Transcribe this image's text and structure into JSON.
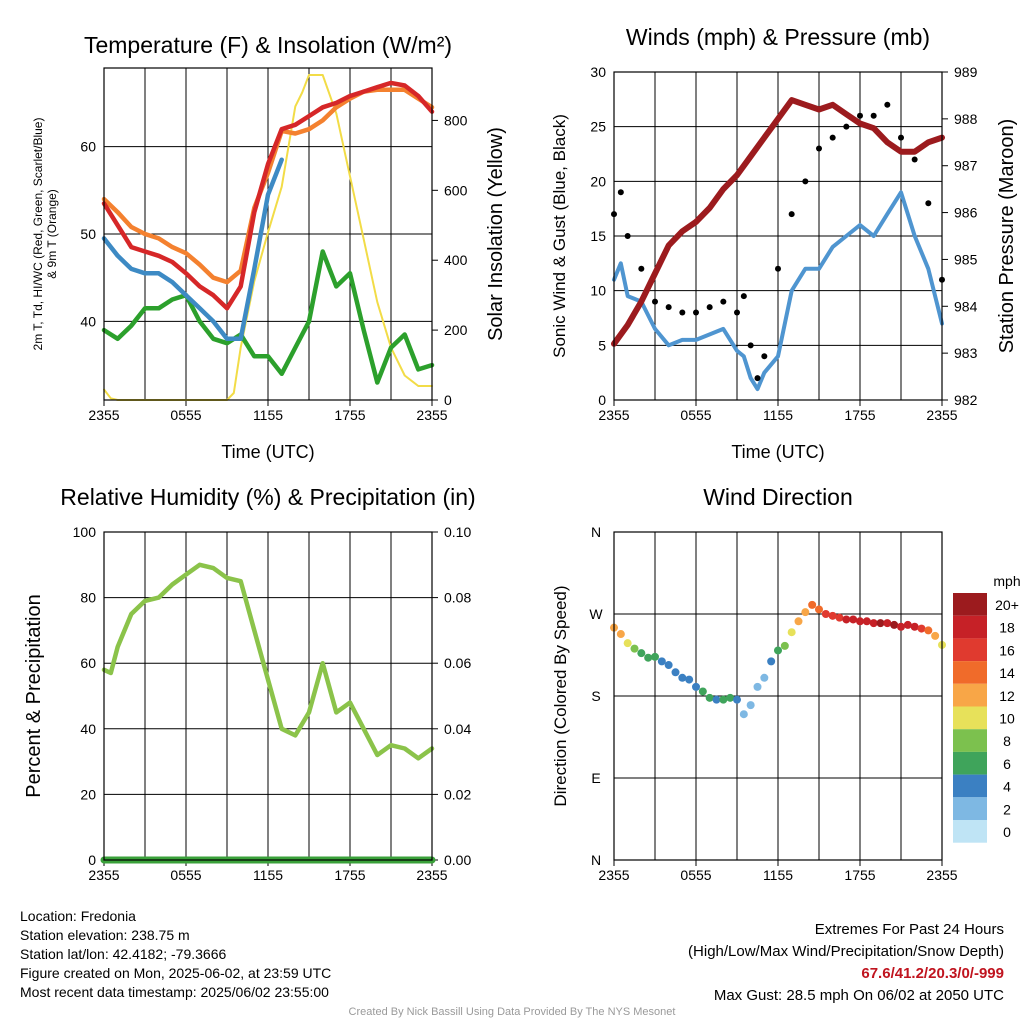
{
  "colors": {
    "temp_2m": "#d62728",
    "dewpoint": "#3d8ac4",
    "hi_wc": "#2ca02c",
    "temp_9m": "#f4812f",
    "insolation": "#f2dc47",
    "wind": "#4f95d0",
    "gust": "#000000",
    "pressure": "#9c1b1e",
    "humidity": "#8bc34a",
    "precip": "#3aa13a",
    "extremes_text": "#c0141f"
  },
  "chart_data": [
    {
      "type": "line",
      "title": "Temperature (F) & Insolation (W/m²)",
      "xlabel": "Time (UTC)",
      "ylabel": "2m T, Td, HI/WC (Red, Green, Scarlet/Blue) & 9m T (Orange)",
      "ylabel_line1": "2m T, Td, HI/WC (Red, Green, Scarlet/Blue)",
      "ylabel_line2": "& 9m T (Orange)",
      "ylabel_right": "Solar Insolation (Yellow)",
      "x_ticks": [
        "2355",
        "0555",
        "1155",
        "1755",
        "2355"
      ],
      "ylim": [
        31,
        69
      ],
      "y_ticks": [
        40,
        50,
        60
      ],
      "ylim_right": [
        0,
        950
      ],
      "y_ticks_right": [
        0,
        200,
        400,
        600,
        800
      ],
      "grid": true,
      "series": [
        {
          "key": "temp_9m",
          "axis": "left",
          "x": [
            0,
            1,
            2,
            3,
            4,
            5,
            6,
            7,
            8,
            9,
            10,
            11,
            12,
            13,
            14,
            15,
            16,
            17,
            18,
            19,
            20,
            21,
            22,
            23,
            24
          ],
          "values": [
            54,
            52.5,
            50.8,
            50,
            49.5,
            48.5,
            47.8,
            46.5,
            45,
            44.5,
            45.8,
            53,
            57,
            61.8,
            61.5,
            62,
            63,
            64.5,
            65.5,
            66.3,
            66.5,
            66.5,
            66.5,
            65.5,
            64.5
          ]
        },
        {
          "key": "temp_2m",
          "axis": "left",
          "x": [
            0,
            1,
            2,
            3,
            4,
            5,
            6,
            7,
            8,
            9,
            10,
            11,
            12,
            13,
            14,
            15,
            16,
            17,
            18,
            19,
            20,
            21,
            22,
            23,
            24
          ],
          "values": [
            53.5,
            51,
            48.5,
            48,
            47.5,
            46.8,
            45.5,
            44,
            43,
            41.5,
            44,
            52.5,
            58,
            62,
            62.5,
            63.5,
            64.5,
            65,
            65.8,
            66.3,
            66.8,
            67.3,
            67,
            65.8,
            64
          ]
        },
        {
          "key": "dewpoint",
          "axis": "left",
          "x": [
            0,
            1,
            2,
            3,
            4,
            5,
            6,
            7,
            8,
            9,
            10,
            11,
            12,
            13
          ],
          "values": [
            49.5,
            47.5,
            46,
            45.5,
            45.5,
            44.5,
            43,
            41.5,
            40,
            38,
            38,
            46,
            54.5,
            58.5
          ]
        },
        {
          "key": "hi_wc",
          "axis": "left",
          "x": [
            0,
            1,
            2,
            3,
            4,
            5,
            6,
            7,
            8,
            9,
            10,
            11,
            12,
            13,
            14,
            15,
            16,
            17,
            18,
            19,
            20,
            21,
            22,
            23,
            24
          ],
          "values": [
            39,
            38,
            39.5,
            41.5,
            41.5,
            42.5,
            43,
            40,
            38,
            37.5,
            38.5,
            36,
            36,
            34,
            37,
            40,
            48,
            44,
            45.5,
            39,
            33,
            37,
            38.5,
            34.5,
            35
          ]
        },
        {
          "key": "insolation",
          "axis": "right",
          "x": [
            0,
            0.5,
            1,
            2,
            3,
            4,
            5,
            6,
            7,
            8,
            9,
            9.5,
            10,
            11,
            12,
            13,
            14,
            14.5,
            15,
            16,
            17,
            18,
            19,
            20,
            21,
            22,
            23,
            23.5,
            24
          ],
          "values": [
            30,
            5,
            0,
            0,
            0,
            0,
            0,
            0,
            0,
            0,
            0,
            20,
            150,
            340,
            480,
            610,
            840,
            880,
            930,
            930,
            820,
            640,
            460,
            280,
            150,
            70,
            40,
            40,
            40
          ]
        }
      ]
    },
    {
      "type": "line",
      "title": "Winds (mph) & Pressure (mb)",
      "xlabel": "Time (UTC)",
      "ylabel": "Sonic Wind & Gust (Blue, Black)",
      "ylabel_right": "Station Pressure (Maroon)",
      "x_ticks": [
        "2355",
        "0555",
        "1155",
        "1755",
        "2355"
      ],
      "ylim": [
        0,
        30
      ],
      "y_ticks": [
        0,
        5,
        10,
        15,
        20,
        25,
        30
      ],
      "ylim_right": [
        982,
        989
      ],
      "y_ticks_right": [
        982,
        983,
        984,
        985,
        986,
        987,
        988,
        989
      ],
      "grid": true,
      "series": [
        {
          "key": "wind",
          "axis": "left",
          "x": [
            0,
            0.5,
            1,
            2,
            3,
            4,
            5,
            6,
            7,
            8,
            9,
            9.5,
            10,
            10.5,
            11,
            12,
            13,
            14,
            15,
            16,
            17,
            18,
            19,
            20,
            21,
            22,
            23,
            24
          ],
          "values": [
            11,
            12.5,
            9.5,
            9,
            6.5,
            5,
            5.5,
            5.5,
            6,
            6.5,
            4.5,
            4,
            2,
            1,
            2.5,
            4,
            10,
            12,
            12,
            14,
            15,
            16,
            15,
            17,
            19,
            15,
            12,
            7
          ]
        },
        {
          "key": "gust",
          "axis": "left",
          "type": "scatter",
          "x": [
            0,
            0.5,
            1,
            2,
            3,
            4,
            5,
            6,
            7,
            8,
            9,
            9.5,
            10,
            10.5,
            11,
            12,
            13,
            14,
            15,
            16,
            17,
            18,
            19,
            20,
            21,
            22,
            23,
            24
          ],
          "values": [
            17,
            19,
            15,
            12,
            9,
            8.5,
            8,
            8,
            8.5,
            9,
            8,
            9.5,
            5,
            2,
            4,
            12,
            17,
            20,
            23,
            24,
            25,
            26,
            26,
            27,
            24,
            22,
            18,
            11
          ]
        },
        {
          "key": "pressure",
          "axis": "right",
          "x": [
            0,
            1,
            2,
            3,
            4,
            5,
            6,
            7,
            8,
            9,
            10,
            11,
            12,
            13,
            14,
            15,
            16,
            17,
            18,
            19,
            20,
            21,
            22,
            23,
            24
          ],
          "values": [
            983.2,
            983.6,
            984.1,
            984.7,
            985.3,
            985.6,
            985.8,
            986.1,
            986.5,
            986.8,
            987.2,
            987.6,
            988.0,
            988.4,
            988.3,
            988.2,
            988.3,
            988.1,
            987.9,
            987.8,
            987.5,
            987.3,
            987.3,
            987.5,
            987.6
          ]
        }
      ]
    },
    {
      "type": "line",
      "title": "Relative Humidity (%) & Precipitation (in)",
      "ylabel": "Percent & Precipitation",
      "x_ticks": [
        "2355",
        "0555",
        "1155",
        "1755",
        "2355"
      ],
      "ylim": [
        0,
        100
      ],
      "y_ticks": [
        0,
        20,
        40,
        60,
        80,
        100
      ],
      "ylim_right": [
        0,
        0.1
      ],
      "y_ticks_right": [
        "0.00",
        "0.02",
        "0.04",
        "0.06",
        "0.08",
        "0.10"
      ],
      "grid": true,
      "series": [
        {
          "key": "humidity",
          "axis": "left",
          "x": [
            0,
            0.5,
            1,
            2,
            3,
            4,
            5,
            6,
            7,
            8,
            9,
            10,
            11,
            12,
            13,
            14,
            15,
            16,
            17,
            18,
            19,
            20,
            21,
            22,
            23,
            24
          ],
          "values": [
            58,
            57,
            65,
            75,
            79,
            80,
            84,
            87,
            90,
            89,
            86,
            85,
            70,
            55,
            40,
            38,
            45,
            60,
            45,
            48,
            40,
            32,
            35,
            34,
            31,
            34
          ]
        },
        {
          "key": "precip",
          "axis": "right",
          "x": [
            0,
            24
          ],
          "values": [
            0,
            0
          ]
        }
      ]
    },
    {
      "type": "scatter",
      "title": "Wind Direction",
      "ylabel": "Direction (Colored By Speed)",
      "x_ticks": [
        "2355",
        "0555",
        "1155",
        "1755",
        "2355"
      ],
      "y_ticks": [
        "N",
        "E",
        "S",
        "W",
        "N"
      ],
      "ylim": [
        0,
        360
      ],
      "grid": true,
      "colorbar": {
        "label": "mph",
        "labels": [
          "20+",
          "18",
          "16",
          "14",
          "12",
          "10",
          "8",
          "6",
          "4",
          "2",
          "0"
        ],
        "colors": [
          "#9c1b1e",
          "#c62127",
          "#e03a2f",
          "#f06b2a",
          "#f8a647",
          "#e7e15a",
          "#7cc14e",
          "#3fa45b",
          "#3b80c2",
          "#7eb8e3",
          "#bfe4f5"
        ]
      },
      "points": {
        "x": [
          0,
          0.5,
          1,
          1.5,
          2,
          2.5,
          3,
          3.5,
          4,
          4.5,
          5,
          5.5,
          6,
          6.5,
          7,
          7.5,
          8,
          8.5,
          9,
          9.5,
          10,
          10.5,
          11,
          11.5,
          12,
          12.5,
          13,
          13.5,
          14,
          14.5,
          15,
          15.5,
          16,
          16.5,
          17,
          17.5,
          18,
          18.5,
          19,
          19.5,
          20,
          20.5,
          21,
          21.5,
          22,
          22.5,
          23,
          23.5,
          24
        ],
        "values": [
          255,
          248,
          238,
          232,
          227,
          222,
          223,
          218,
          214,
          206,
          200,
          198,
          190,
          185,
          178,
          176,
          176,
          178,
          176,
          160,
          170,
          190,
          200,
          218,
          230,
          235,
          250,
          262,
          272,
          280,
          275,
          270,
          268,
          266,
          264,
          264,
          262,
          262,
          260,
          260,
          260,
          258,
          256,
          258,
          256,
          254,
          252,
          246,
          236
        ],
        "speed": [
          12,
          12,
          10,
          8,
          6,
          6,
          6,
          5,
          5,
          5,
          4,
          4,
          5,
          6,
          6,
          5,
          6,
          6,
          5,
          3,
          2,
          2,
          2,
          4,
          6,
          8,
          10,
          12,
          13,
          14,
          15,
          16,
          17,
          17,
          18,
          18,
          19,
          19,
          19,
          20,
          19,
          20,
          19,
          19,
          18,
          17,
          15,
          13,
          11
        ]
      }
    }
  ],
  "info": {
    "location": "Location: Fredonia",
    "elevation": "Station elevation: 238.75 m",
    "latlon": "Station lat/lon: 42.4182; -79.3666",
    "created": "Figure created on Mon, 2025-06-02, at 23:59 UTC",
    "recent": "Most recent data timestamp: 2025/06/02 23:55:00"
  },
  "extremes": {
    "title": "Extremes For Past 24 Hours",
    "subtitle": "(High/Low/Max Wind/Precipitation/Snow Depth)",
    "values": "67.6/41.2/20.3/0/-999",
    "max_gust": "Max Gust: 28.5 mph On 06/02 at 2050 UTC"
  },
  "credit": "Created By Nick Bassill Using Data Provided By The NYS Mesonet"
}
